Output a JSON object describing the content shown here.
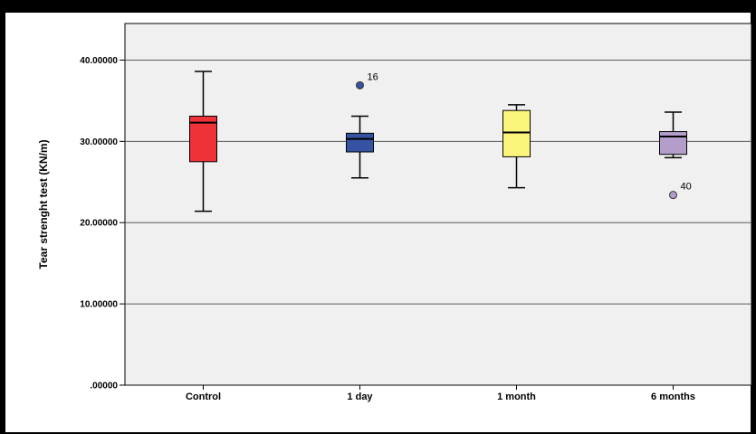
{
  "chart_data": {
    "type": "boxplot",
    "title": "",
    "xlabel": "",
    "ylabel": "Tear strenght test (KN/m)",
    "ylim": [
      0,
      44.5
    ],
    "yticks": [
      0,
      10,
      20,
      30,
      40
    ],
    "ytick_labels": [
      ".00000",
      "10.00000",
      "20.00000",
      "30.00000",
      "40.00000"
    ],
    "grid": true,
    "categories": [
      "Control",
      "1 day",
      "1 month",
      "6 months"
    ],
    "boxes": [
      {
        "category": "Control",
        "min": 21.4,
        "q1": 27.5,
        "median": 32.3,
        "q3": 33.1,
        "max": 38.6,
        "color": "#ee3338",
        "outliers": []
      },
      {
        "category": "1 day",
        "min": 25.5,
        "q1": 28.7,
        "median": 30.3,
        "q3": 31.0,
        "max": 33.1,
        "color": "#3653a3",
        "outliers": [
          {
            "label": "16",
            "value": 36.9
          }
        ]
      },
      {
        "category": "1 month",
        "min": 24.3,
        "q1": 28.1,
        "median": 31.1,
        "q3": 33.8,
        "max": 34.5,
        "color": "#fbf57c",
        "outliers": []
      },
      {
        "category": "6 months",
        "min": 28.0,
        "q1": 28.4,
        "median": 30.6,
        "q3": 31.2,
        "max": 33.6,
        "color": "#b39dca",
        "outliers": [
          {
            "label": "40",
            "value": 23.4
          }
        ]
      }
    ]
  }
}
